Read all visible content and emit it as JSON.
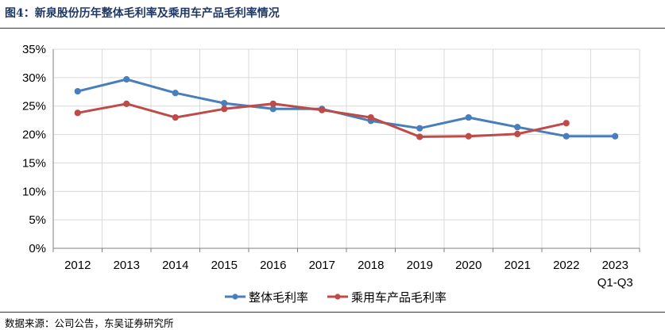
{
  "header": {
    "title": "图4：新泉股份历年整体毛利率及乘用车产品毛利率情况"
  },
  "footer": {
    "source": "数据来源：公司公告，东吴证券研究所"
  },
  "colors": {
    "series1": "#4a7ebb",
    "series2": "#be4b48",
    "grid": "#d9d9d9",
    "title": "#1f3864"
  },
  "chart_data": {
    "type": "line",
    "title": "图4：新泉股份历年整体毛利率及乘用车产品毛利率情况",
    "xlabel": "",
    "ylabel": "",
    "categories": [
      "2012",
      "2013",
      "2014",
      "2015",
      "2016",
      "2017",
      "2018",
      "2019",
      "2020",
      "2021",
      "2022",
      "2023"
    ],
    "category_sublabels": [
      "",
      "",
      "",
      "",
      "",
      "",
      "",
      "",
      "",
      "",
      "",
      "Q1-Q3"
    ],
    "ylim": [
      0,
      35
    ],
    "yticks": [
      0,
      5,
      10,
      15,
      20,
      25,
      30,
      35
    ],
    "ytick_labels": [
      "0%",
      "5%",
      "10%",
      "15%",
      "20%",
      "25%",
      "30%",
      "35%"
    ],
    "grid": true,
    "legend_position": "bottom",
    "series": [
      {
        "name": "整体毛利率",
        "color": "#4a7ebb",
        "values": [
          27.6,
          29.7,
          27.3,
          25.5,
          24.5,
          24.5,
          22.4,
          21.1,
          23.0,
          21.3,
          19.7,
          19.7
        ]
      },
      {
        "name": "乘用车产品毛利率",
        "color": "#be4b48",
        "values": [
          23.8,
          25.4,
          23.0,
          24.5,
          25.4,
          24.3,
          23.0,
          19.6,
          19.7,
          20.1,
          22.0,
          null
        ]
      }
    ]
  }
}
